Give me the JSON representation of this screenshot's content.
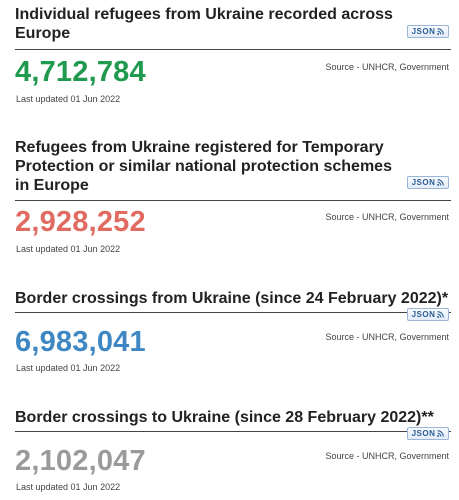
{
  "panels": [
    {
      "title": "Individual refugees from Ukraine recorded across Europe",
      "json_label": "JSON",
      "value": "4,712,784",
      "value_color": "#1f9a4e",
      "source": "Source - UNHCR, Government",
      "updated": "Last updated 01 Jun 2022"
    },
    {
      "title": "Refugees from Ukraine registered for Temporary Protection or similar national protection schemes in Europe",
      "json_label": "JSON",
      "value": "2,928,252",
      "value_color": "#e06b61",
      "source": "Source - UNHCR, Government",
      "updated": "Last updated 01 Jun 2022"
    },
    {
      "title": "Border crossings from Ukraine (since 24 February 2022)*",
      "json_label": "JSON",
      "value": "6,983,041",
      "value_color": "#3f87c2",
      "source": "Source - UNHCR, Government",
      "updated": "Last updated 01 Jun 2022"
    },
    {
      "title": "Border crossings to Ukraine (since 28 February 2022)**",
      "json_label": "JSON",
      "value": "2,102,047",
      "value_color": "#9a9a9a",
      "source": "Source - UNHCR, Government",
      "updated": "Last updated 01 Jun 2022"
    }
  ],
  "icons": {
    "feed": "rss-feed-icon"
  }
}
